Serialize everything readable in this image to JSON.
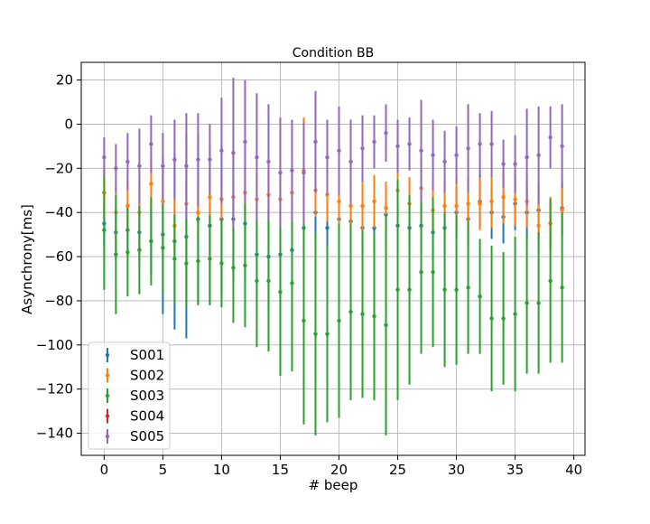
{
  "chart_data": {
    "type": "scatter",
    "title": "Condition BB",
    "xlabel": "# beep",
    "ylabel": "Asynchrony[ms]",
    "xlim": [
      -1.95,
      40.95
    ],
    "ylim": [
      -150,
      28
    ],
    "xticks": [
      0,
      5,
      10,
      15,
      20,
      25,
      30,
      35,
      40
    ],
    "yticks": [
      20,
      0,
      -20,
      -40,
      -60,
      -80,
      -100,
      -120,
      -140
    ],
    "grid": true,
    "legend_position": "lower-left",
    "colors": {
      "S001": "#1f77b4",
      "S002": "#ff7f0e",
      "S003": "#2ca02c",
      "S004": "#d62728",
      "S005": "#9467bd"
    },
    "x": [
      0,
      1,
      2,
      3,
      4,
      5,
      6,
      7,
      8,
      9,
      10,
      11,
      12,
      13,
      14,
      15,
      16,
      17,
      18,
      19,
      20,
      21,
      22,
      23,
      24,
      25,
      26,
      27,
      28,
      29,
      30,
      31,
      32,
      33,
      34,
      35,
      36,
      37,
      38,
      39
    ],
    "series": [
      {
        "name": "S001",
        "values": [
          -45,
          -49,
          -48,
          -49,
          -53,
          -50,
          -53,
          -51,
          -43,
          -46,
          -43,
          -43,
          -45,
          -59,
          -60,
          -59,
          -57,
          -47,
          -40,
          -47,
          -43,
          -44,
          -47,
          -47,
          -41,
          -46,
          -47,
          -46,
          -49,
          -47,
          -40,
          -43,
          -35,
          -40,
          -42,
          -36,
          -40,
          -39,
          -45,
          -38
        ],
        "errors": [
          10,
          12,
          12,
          13,
          15,
          36,
          40,
          46,
          38,
          36,
          34,
          28,
          26,
          24,
          22,
          20,
          18,
          16,
          14,
          12,
          12,
          12,
          12,
          12,
          12,
          12,
          12,
          12,
          12,
          12,
          12,
          12,
          12,
          12,
          12,
          12,
          12,
          12,
          12,
          12
        ]
      },
      {
        "name": "S002",
        "values": [
          -31,
          -40,
          -37,
          -40,
          -27,
          -35,
          -46,
          -36,
          -40,
          -33,
          -34,
          -33,
          -31,
          -34,
          -32,
          -34,
          -31,
          -21,
          -30,
          -32,
          -35,
          -37,
          -37,
          -35,
          -38,
          -30,
          -36,
          -29,
          -39,
          -37,
          -37,
          -36,
          -36,
          -35,
          -33,
          -34,
          -35,
          -46,
          -45,
          -39
        ],
        "errors": [
          12,
          12,
          12,
          12,
          12,
          12,
          12,
          12,
          12,
          12,
          12,
          12,
          12,
          12,
          12,
          12,
          12,
          24,
          12,
          12,
          12,
          12,
          12,
          12,
          12,
          12,
          12,
          12,
          12,
          12,
          12,
          12,
          12,
          12,
          12,
          12,
          12,
          12,
          12,
          12
        ]
      },
      {
        "name": "S003",
        "values": [
          -48,
          -59,
          -58,
          -57,
          -53,
          -56,
          -61,
          -63,
          -62,
          -61,
          -63,
          -65,
          -64,
          -71,
          -71,
          -76,
          -72,
          -89,
          -95,
          -95,
          -89,
          -85,
          -86,
          -87,
          -91,
          -75,
          -75,
          -67,
          -67,
          -75,
          -75,
          -74,
          -78,
          -88,
          -88,
          -86,
          -81,
          -81,
          -71,
          -74
        ],
        "errors": [
          27,
          27,
          20,
          20,
          20,
          20,
          20,
          20,
          20,
          20,
          20,
          25,
          28,
          30,
          32,
          38,
          40,
          47,
          46,
          40,
          44,
          40,
          38,
          38,
          50,
          50,
          43,
          37,
          34,
          35,
          34,
          30,
          26,
          33,
          30,
          35,
          32,
          32,
          37,
          34
        ]
      },
      {
        "name": "S004",
        "values": [],
        "errors": []
      },
      {
        "name": "S005",
        "values": [
          -15,
          -20,
          -17,
          -19,
          -9,
          -19,
          -16,
          -19,
          -16,
          -16,
          -12,
          -13,
          -8,
          -15,
          -17,
          -22,
          -21,
          -22,
          -8,
          -15,
          -12,
          -17,
          -11,
          -8,
          -4,
          -10,
          -9,
          -12,
          -14,
          -17,
          -14,
          -11,
          -9,
          -9,
          -18,
          -18,
          -15,
          -14,
          -6,
          -10
        ],
        "errors": [
          9,
          11,
          13,
          17,
          13,
          15,
          18,
          24,
          21,
          16,
          24,
          34,
          28,
          29,
          26,
          25,
          23,
          23,
          23,
          17,
          20,
          19,
          15,
          12,
          13,
          12,
          12,
          23,
          16,
          14,
          13,
          20,
          14,
          15,
          11,
          13,
          22,
          22,
          14,
          19
        ]
      }
    ]
  }
}
